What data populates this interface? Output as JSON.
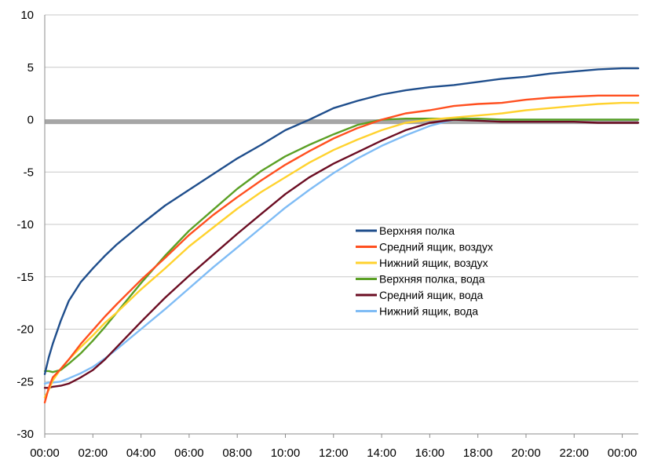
{
  "chart_data": {
    "type": "line",
    "title": "",
    "xlabel": "",
    "ylabel": "",
    "ylim": [
      -30,
      10
    ],
    "y_ticks": [
      10,
      5,
      0,
      -5,
      -10,
      -15,
      -20,
      -25,
      -30
    ],
    "xlim": [
      "00:00",
      "24:40"
    ],
    "x_tick_labels": [
      "00:00",
      "02:00",
      "04:00",
      "06:00",
      "08:00",
      "10:00",
      "12:00",
      "14:00",
      "16:00",
      "18:00",
      "20:00",
      "22:00",
      "00:00"
    ],
    "grid": "horizontal",
    "legend_position": "center-right",
    "reference_line": {
      "y": -0.2,
      "color": "#a6a6a6"
    },
    "x": [
      "00:00",
      "00:10",
      "00:20",
      "00:40",
      "01:00",
      "01:30",
      "02:00",
      "02:30",
      "03:00",
      "04:00",
      "05:00",
      "06:00",
      "07:00",
      "08:00",
      "09:00",
      "10:00",
      "11:00",
      "12:00",
      "13:00",
      "14:00",
      "15:00",
      "16:00",
      "17:00",
      "18:00",
      "19:00",
      "20:00",
      "21:00",
      "22:00",
      "23:00",
      "24:00",
      "24:40"
    ],
    "series": [
      {
        "name": "Верхняя полка",
        "color": "#1f4e8c",
        "values": [
          -24.3,
          -22.7,
          -21.4,
          -19.2,
          -17.3,
          -15.5,
          -14.2,
          -13.0,
          -11.9,
          -10.0,
          -8.2,
          -6.7,
          -5.2,
          -3.7,
          -2.4,
          -1.0,
          0.0,
          1.1,
          1.8,
          2.4,
          2.8,
          3.1,
          3.3,
          3.6,
          3.9,
          4.1,
          4.4,
          4.6,
          4.8,
          4.9,
          4.9
        ]
      },
      {
        "name": "Средний ящик, воздух",
        "color": "#ff4f1f",
        "values": [
          -27.0,
          -25.6,
          -24.6,
          -23.8,
          -22.9,
          -21.4,
          -20.1,
          -18.8,
          -17.6,
          -15.3,
          -13.2,
          -11.0,
          -9.1,
          -7.4,
          -5.8,
          -4.3,
          -3.0,
          -1.8,
          -0.8,
          0.0,
          0.6,
          0.9,
          1.3,
          1.5,
          1.6,
          1.9,
          2.1,
          2.2,
          2.3,
          2.3,
          2.3
        ]
      },
      {
        "name": "Нижний ящик, воздух",
        "color": "#ffd22e",
        "values": [
          -26.5,
          -25.8,
          -24.9,
          -23.8,
          -22.9,
          -21.7,
          -20.6,
          -19.4,
          -18.4,
          -16.2,
          -14.2,
          -12.1,
          -10.3,
          -8.5,
          -6.9,
          -5.5,
          -4.1,
          -2.9,
          -1.9,
          -1.0,
          -0.3,
          0.0,
          0.2,
          0.4,
          0.6,
          0.9,
          1.1,
          1.3,
          1.5,
          1.6,
          1.6
        ]
      },
      {
        "name": "Верхняя полка, вода",
        "color": "#5ba025",
        "values": [
          -24.0,
          -24.0,
          -24.1,
          -23.9,
          -23.3,
          -22.3,
          -21.1,
          -19.8,
          -18.4,
          -15.6,
          -13.0,
          -10.6,
          -8.6,
          -6.6,
          -4.9,
          -3.5,
          -2.4,
          -1.4,
          -0.5,
          0.0,
          0.1,
          0.1,
          0.1,
          0.1,
          0.0,
          0.0,
          0.0,
          0.0,
          0.0,
          0.0,
          0.0
        ]
      },
      {
        "name": "Средний ящик, вода",
        "color": "#6b0d23",
        "values": [
          -25.6,
          -25.6,
          -25.5,
          -25.4,
          -25.2,
          -24.6,
          -23.9,
          -22.9,
          -21.7,
          -19.3,
          -17.0,
          -14.9,
          -12.9,
          -10.9,
          -9.0,
          -7.1,
          -5.5,
          -4.2,
          -3.1,
          -2.0,
          -1.0,
          -0.3,
          0.0,
          -0.1,
          -0.2,
          -0.2,
          -0.2,
          -0.2,
          -0.3,
          -0.3,
          -0.3
        ]
      },
      {
        "name": "Нижний ящик, вода",
        "color": "#7fbcf5",
        "values": [
          -25.2,
          -25.1,
          -25.1,
          -25.0,
          -24.7,
          -24.2,
          -23.6,
          -22.8,
          -21.9,
          -20.0,
          -18.1,
          -16.1,
          -14.1,
          -12.2,
          -10.3,
          -8.4,
          -6.7,
          -5.1,
          -3.7,
          -2.5,
          -1.5,
          -0.6,
          0.0,
          0.0,
          0.0,
          0.0,
          0.0,
          0.0,
          0.0,
          0.0,
          0.0
        ]
      }
    ]
  }
}
